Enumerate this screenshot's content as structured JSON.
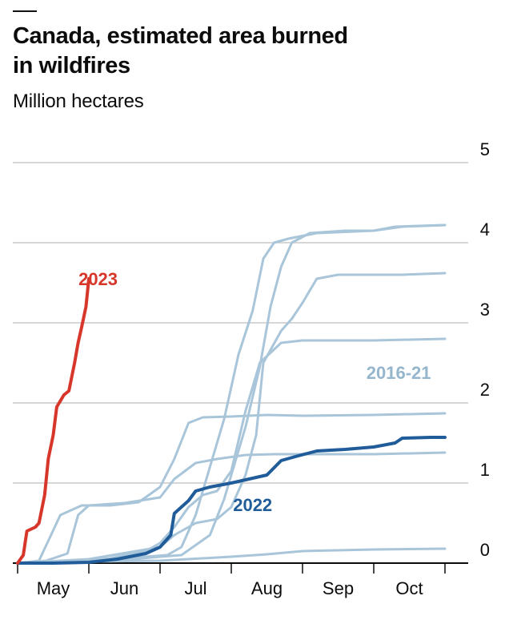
{
  "chart_data": {
    "type": "line",
    "title": "Canada, estimated area burned in wildfires",
    "subtitle": "Million hectares",
    "ylim": [
      0,
      5
    ],
    "yticks": [
      0,
      1,
      2,
      3,
      4,
      5
    ],
    "xtick_labels": [
      "May",
      "Jun",
      "Jul",
      "Aug",
      "Sep",
      "Oct"
    ],
    "x_unit": "month",
    "x_note": "x values are months, 5.0 = 1 May ... 11.0 = 1 Nov",
    "grid": true,
    "colors": {
      "highlight": "#d7362b",
      "current": "#1f5c99",
      "history": "#a9c5d9",
      "grid": "#c9c9c9"
    },
    "labels": [
      {
        "text": "2023",
        "series": "2023",
        "color": "#d7362b",
        "x": 5.72,
        "y": 3.55
      },
      {
        "text": "2016-21",
        "series": "2016-21",
        "color": "#95b6cc",
        "x": 10.35,
        "y": 2.38
      },
      {
        "text": "2022",
        "series": "2022",
        "color": "#1f5c99",
        "x": 8.3,
        "y": 0.73
      }
    ],
    "series": [
      {
        "name": "",
        "group": "history",
        "points": [
          [
            5.0,
            0
          ],
          [
            5.5,
            0.01
          ],
          [
            6.0,
            0.02
          ],
          [
            6.5,
            0.04
          ],
          [
            7.0,
            0.08
          ],
          [
            7.3,
            0.1
          ],
          [
            7.7,
            0.35
          ],
          [
            7.9,
            0.8
          ],
          [
            8.2,
            1.7
          ],
          [
            8.4,
            2.45
          ],
          [
            8.55,
            3.2
          ],
          [
            8.7,
            3.7
          ],
          [
            8.85,
            4.0
          ],
          [
            9.1,
            4.12
          ],
          [
            9.6,
            4.15
          ],
          [
            10.0,
            4.15
          ],
          [
            10.3,
            4.2
          ],
          [
            11.0,
            4.22
          ]
        ]
      },
      {
        "name": "",
        "group": "history",
        "points": [
          [
            5.0,
            0
          ],
          [
            5.6,
            0.02
          ],
          [
            6.0,
            0.02
          ],
          [
            6.4,
            0.05
          ],
          [
            6.8,
            0.08
          ],
          [
            7.1,
            0.1
          ],
          [
            7.3,
            0.2
          ],
          [
            7.5,
            0.6
          ],
          [
            7.7,
            1.2
          ],
          [
            7.9,
            1.8
          ],
          [
            8.1,
            2.6
          ],
          [
            8.3,
            3.15
          ],
          [
            8.45,
            3.8
          ],
          [
            8.6,
            4.0
          ],
          [
            8.8,
            4.05
          ],
          [
            9.2,
            4.12
          ],
          [
            10.0,
            4.15
          ],
          [
            10.4,
            4.2
          ],
          [
            11.0,
            4.22
          ]
        ]
      },
      {
        "name": "",
        "group": "history",
        "points": [
          [
            5.0,
            0
          ],
          [
            5.3,
            0.03
          ],
          [
            5.6,
            0.6
          ],
          [
            5.9,
            0.72
          ],
          [
            6.3,
            0.72
          ],
          [
            6.7,
            0.76
          ],
          [
            7.0,
            0.95
          ],
          [
            7.2,
            1.3
          ],
          [
            7.4,
            1.75
          ],
          [
            7.6,
            1.82
          ],
          [
            8.0,
            1.83
          ],
          [
            8.5,
            1.85
          ],
          [
            9.0,
            1.84
          ],
          [
            10.0,
            1.85
          ],
          [
            11.0,
            1.87
          ]
        ]
      },
      {
        "name": "",
        "group": "history",
        "points": [
          [
            5.0,
            0
          ],
          [
            5.4,
            0.03
          ],
          [
            5.7,
            0.12
          ],
          [
            5.85,
            0.6
          ],
          [
            6.0,
            0.72
          ],
          [
            6.5,
            0.75
          ],
          [
            7.0,
            0.82
          ],
          [
            7.2,
            1.05
          ],
          [
            7.5,
            1.25
          ],
          [
            7.8,
            1.3
          ],
          [
            8.2,
            1.35
          ],
          [
            8.6,
            1.36
          ],
          [
            9.0,
            1.36
          ],
          [
            10.0,
            1.36
          ],
          [
            11.0,
            1.38
          ]
        ]
      },
      {
        "name": "",
        "group": "history",
        "points": [
          [
            5.0,
            0
          ],
          [
            5.8,
            0.02
          ],
          [
            6.3,
            0.06
          ],
          [
            6.8,
            0.15
          ],
          [
            7.0,
            0.25
          ],
          [
            7.2,
            0.45
          ],
          [
            7.4,
            0.7
          ],
          [
            7.6,
            0.85
          ],
          [
            7.8,
            0.9
          ],
          [
            8.0,
            1.15
          ],
          [
            8.2,
            1.9
          ],
          [
            8.4,
            2.5
          ],
          [
            8.7,
            2.75
          ],
          [
            9.0,
            2.78
          ],
          [
            9.5,
            2.78
          ],
          [
            10.0,
            2.78
          ],
          [
            11.0,
            2.8
          ]
        ]
      },
      {
        "name": "",
        "group": "history",
        "points": [
          [
            5.0,
            0
          ],
          [
            6.0,
            0.05
          ],
          [
            7.0,
            0.2
          ],
          [
            7.2,
            0.35
          ],
          [
            7.5,
            0.5
          ],
          [
            7.8,
            0.55
          ],
          [
            8.0,
            0.7
          ],
          [
            8.2,
            1.1
          ],
          [
            8.35,
            1.6
          ],
          [
            8.45,
            2.5
          ],
          [
            8.7,
            2.9
          ],
          [
            8.85,
            3.05
          ],
          [
            9.0,
            3.25
          ],
          [
            9.2,
            3.55
          ],
          [
            9.5,
            3.6
          ],
          [
            10.0,
            3.6
          ],
          [
            10.4,
            3.6
          ],
          [
            11.0,
            3.62
          ]
        ]
      },
      {
        "name": "",
        "group": "history",
        "points": [
          [
            5.0,
            0
          ],
          [
            6.0,
            0.02
          ],
          [
            7.0,
            0.03
          ],
          [
            8.0,
            0.08
          ],
          [
            8.5,
            0.11
          ],
          [
            9.0,
            0.15
          ],
          [
            10.0,
            0.17
          ],
          [
            11.0,
            0.18
          ]
        ]
      },
      {
        "name": "2022",
        "group": "current",
        "points": [
          [
            5.0,
            0
          ],
          [
            5.5,
            0
          ],
          [
            6.0,
            0.01
          ],
          [
            6.4,
            0.05
          ],
          [
            6.8,
            0.12
          ],
          [
            7.0,
            0.2
          ],
          [
            7.15,
            0.35
          ],
          [
            7.2,
            0.62
          ],
          [
            7.4,
            0.78
          ],
          [
            7.5,
            0.9
          ],
          [
            7.7,
            0.95
          ],
          [
            8.0,
            1.0
          ],
          [
            8.5,
            1.1
          ],
          [
            8.7,
            1.28
          ],
          [
            8.9,
            1.33
          ],
          [
            9.2,
            1.4
          ],
          [
            9.6,
            1.42
          ],
          [
            10.0,
            1.45
          ],
          [
            10.3,
            1.5
          ],
          [
            10.4,
            1.56
          ],
          [
            10.8,
            1.57
          ],
          [
            11.0,
            1.57
          ]
        ]
      },
      {
        "name": "2023",
        "group": "highlight",
        "points": [
          [
            5.0,
            0
          ],
          [
            5.08,
            0.1
          ],
          [
            5.13,
            0.4
          ],
          [
            5.25,
            0.45
          ],
          [
            5.3,
            0.5
          ],
          [
            5.38,
            0.85
          ],
          [
            5.43,
            1.3
          ],
          [
            5.5,
            1.6
          ],
          [
            5.55,
            1.95
          ],
          [
            5.65,
            2.1
          ],
          [
            5.72,
            2.15
          ],
          [
            5.8,
            2.5
          ],
          [
            5.85,
            2.75
          ],
          [
            5.9,
            2.95
          ],
          [
            5.96,
            3.2
          ],
          [
            6.0,
            3.55
          ]
        ]
      }
    ]
  }
}
